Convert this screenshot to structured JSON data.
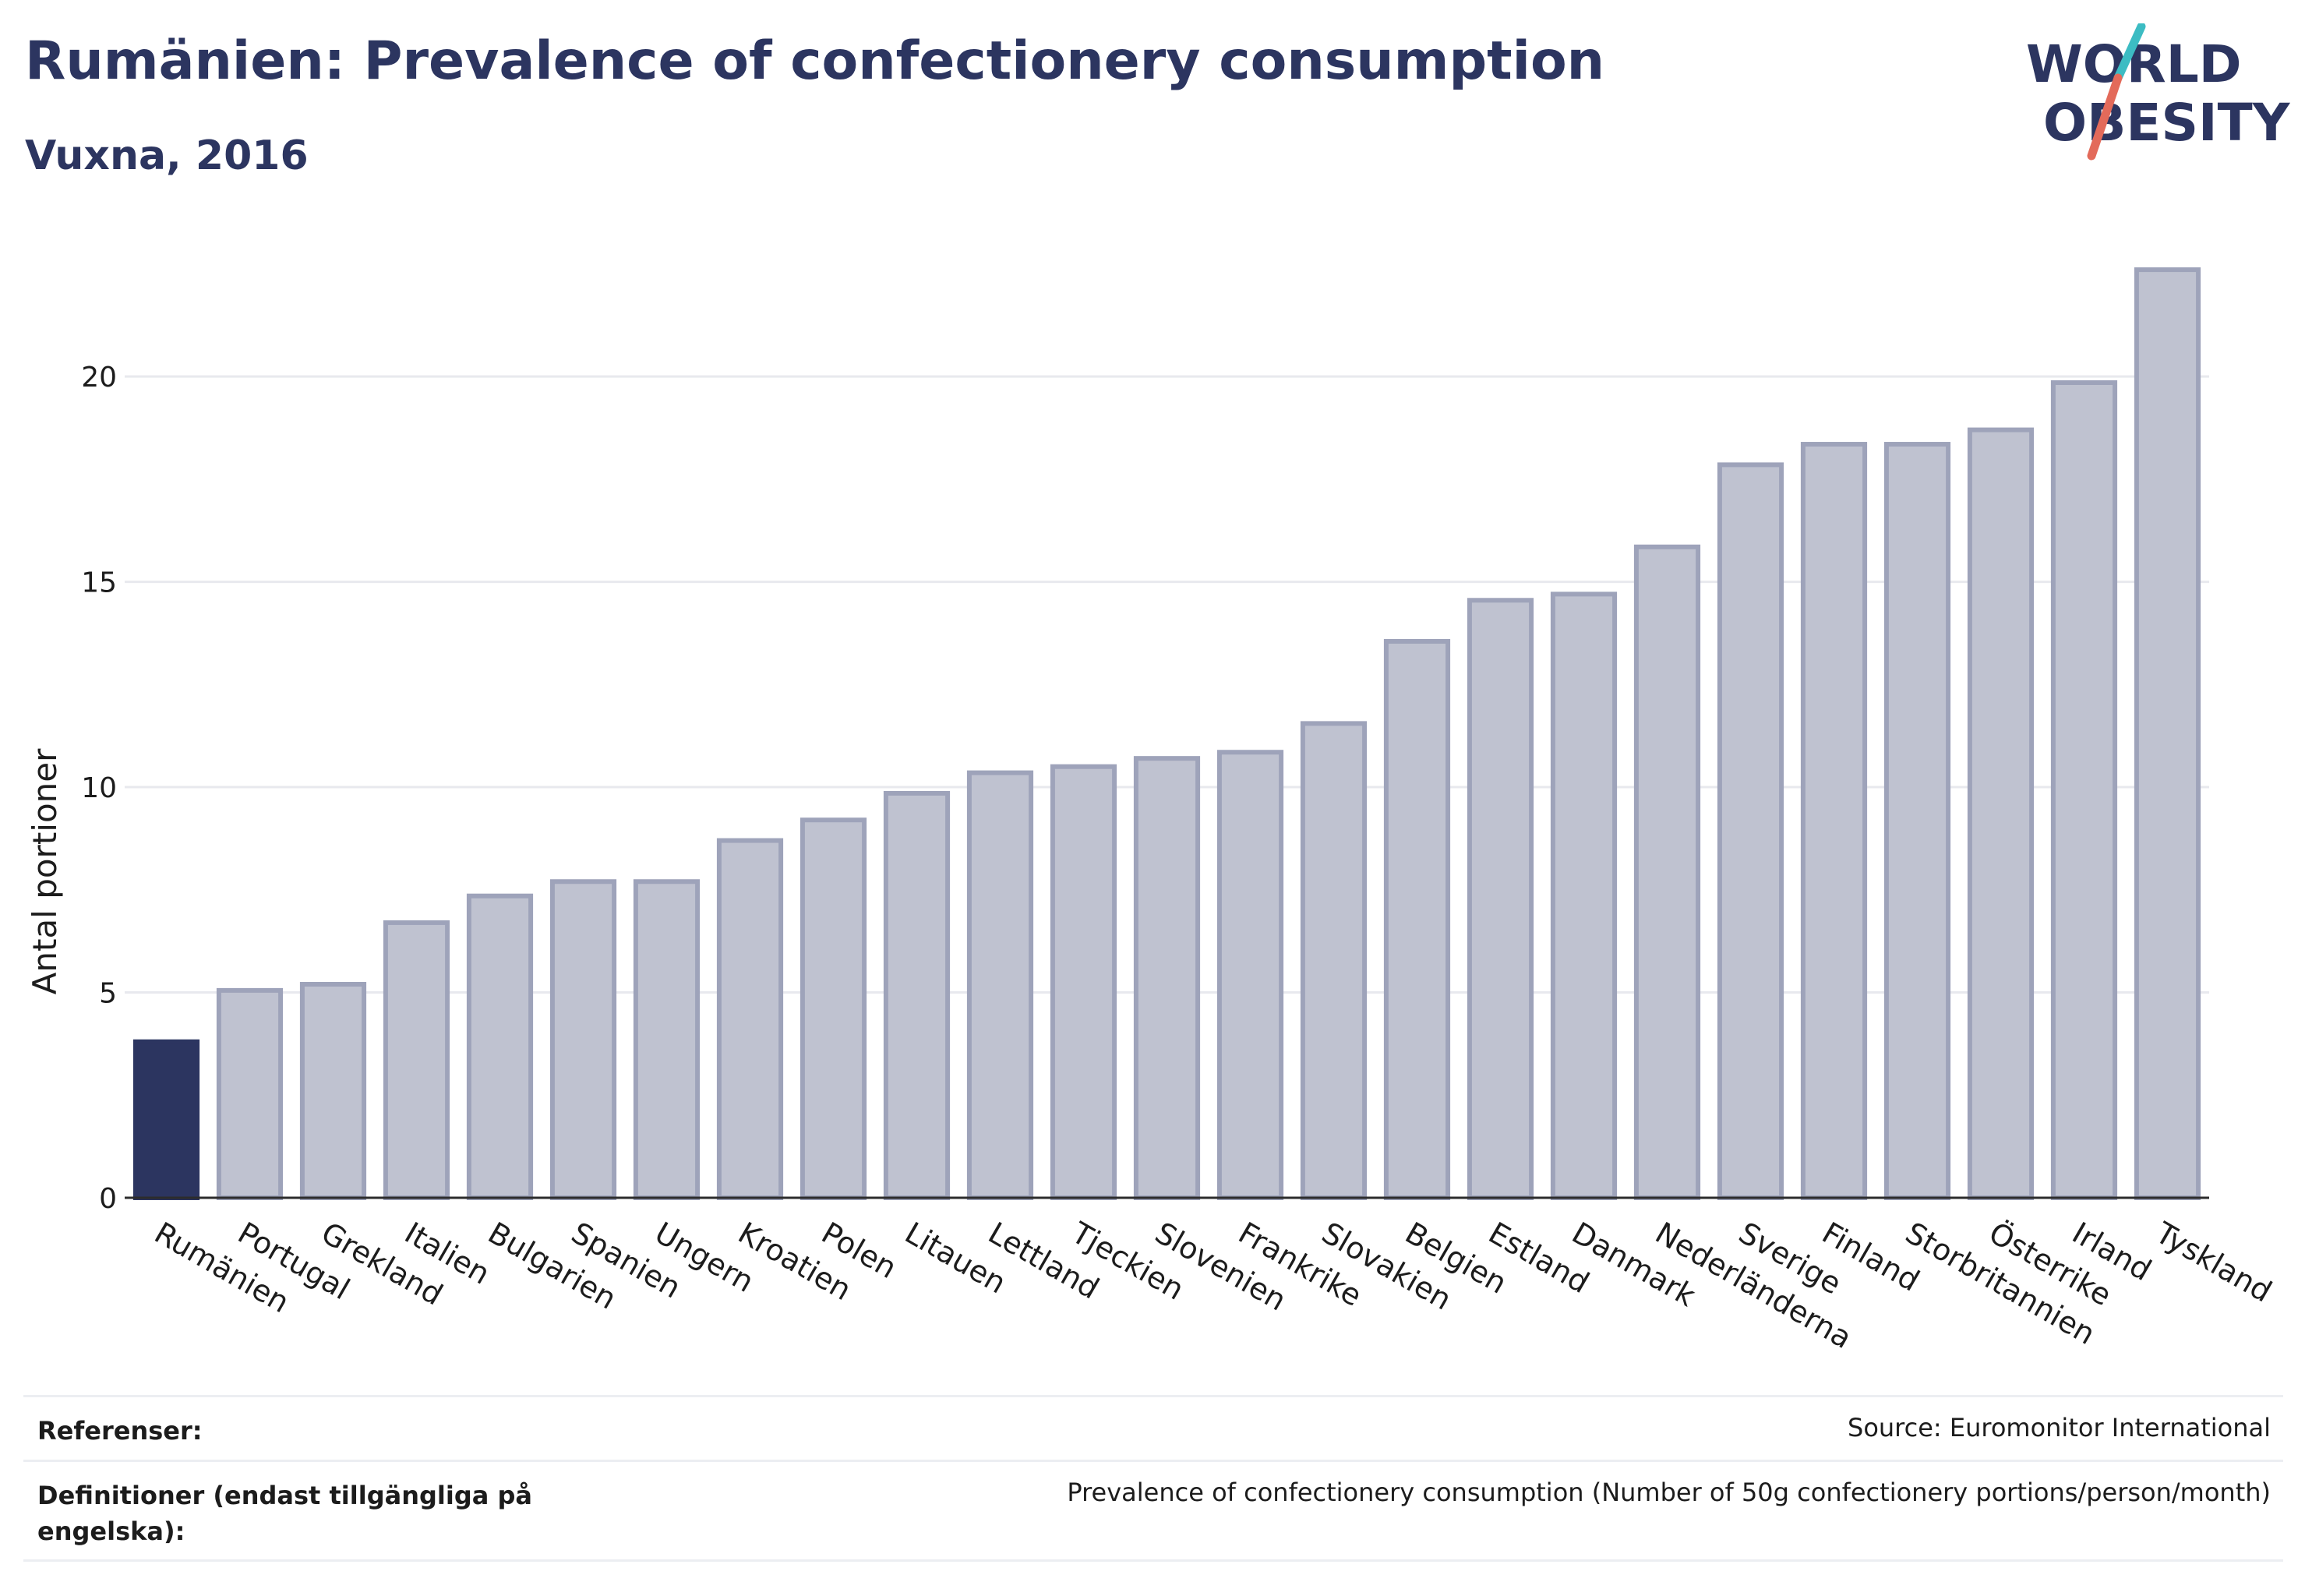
{
  "header": {
    "title": "Rumänien: Prevalence of confectionery consumption",
    "subtitle": "Vuxna, 2016"
  },
  "logo": {
    "line1": "WORLD",
    "line2": "OBESITY",
    "colors": {
      "text": "#2c3560",
      "teal": "#3cbcc3",
      "coral": "#e36a5a"
    }
  },
  "chart_data": {
    "type": "bar",
    "ylabel": "Antal portioner",
    "ylim": [
      0,
      23
    ],
    "yticks": [
      0,
      5,
      10,
      15,
      20
    ],
    "grid": true,
    "categories": [
      "Rumänien",
      "Portugal",
      "Grekland",
      "Italien",
      "Bulgarien",
      "Spanien",
      "Ungern",
      "Kroatien",
      "Polen",
      "Litauen",
      "Lettland",
      "Tjeckien",
      "Slovenien",
      "Frankrike",
      "Slovakien",
      "Belgien",
      "Estland",
      "Danmark",
      "Nederländerna",
      "Sverige",
      "Finland",
      "Storbritannien",
      "Österrike",
      "Irland",
      "Tyskland"
    ],
    "values": [
      3.8,
      5.05,
      5.2,
      6.7,
      7.35,
      7.7,
      7.7,
      8.7,
      9.2,
      9.85,
      10.35,
      10.5,
      10.7,
      10.85,
      11.55,
      13.55,
      14.55,
      14.7,
      15.85,
      17.85,
      18.35,
      18.35,
      18.7,
      19.85,
      22.6
    ],
    "highlight_index": 0,
    "colors": {
      "highlight": "#2c3560",
      "bar_fill": "#bfc2d0",
      "bar_stroke": "#9ea3ba",
      "grid": "#e8e9ee",
      "axis": "#2c2c2c"
    }
  },
  "footer": {
    "references_label": "Referenser:",
    "references_value": "Source: Euromonitor International",
    "definitions_label": "Definitioner (endast tillgängliga på engelska):",
    "definitions_value": "Prevalence of confectionery consumption (Number of 50g confectionery portions/person/month)"
  }
}
